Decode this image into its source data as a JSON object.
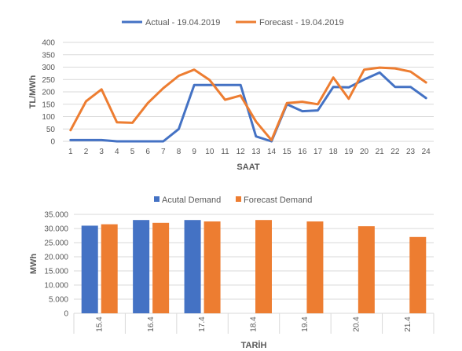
{
  "colors": {
    "actual": "#4472c4",
    "forecast": "#ed7d31",
    "grid": "#d9d9d9",
    "text": "#595959"
  },
  "chart_data": [
    {
      "type": "line",
      "xlabel": "SAAT",
      "ylabel": "TL/MWh",
      "ylim": [
        0,
        400
      ],
      "yticks": [
        "0",
        "50",
        "100",
        "150",
        "200",
        "250",
        "300",
        "350",
        "400"
      ],
      "grid": true,
      "legend": "top",
      "x": [
        "1",
        "2",
        "3",
        "4",
        "5",
        "6",
        "7",
        "8",
        "9",
        "10",
        "11",
        "12",
        "13",
        "14",
        "15",
        "16",
        "17",
        "18",
        "19",
        "20",
        "21",
        "22",
        "23",
        "24"
      ],
      "series": [
        {
          "name": "Actual - 19.04.2019",
          "values": [
            5,
            5,
            5,
            0,
            0,
            0,
            0,
            50,
            228,
            228,
            228,
            228,
            20,
            0,
            150,
            122,
            125,
            220,
            218,
            250,
            278,
            220,
            220,
            175
          ]
        },
        {
          "name": "Forecast - 19.04.2019",
          "values": [
            45,
            162,
            210,
            77,
            75,
            155,
            215,
            265,
            290,
            248,
            168,
            185,
            80,
            5,
            155,
            160,
            150,
            258,
            172,
            290,
            298,
            295,
            282,
            238
          ]
        }
      ]
    },
    {
      "type": "bar",
      "xlabel": "TARİH",
      "ylabel": "MWh",
      "ylim": [
        0,
        35000
      ],
      "yticks": [
        "0",
        "5.000",
        "10.000",
        "15.000",
        "20.000",
        "25.000",
        "30.000",
        "35.000"
      ],
      "grid": true,
      "legend": "top",
      "categories": [
        "15.4",
        "16.4",
        "17.4",
        "18.4",
        "19.4",
        "20.4",
        "21.4"
      ],
      "series": [
        {
          "name": "Acutal Demand",
          "values": [
            31000,
            33000,
            33000,
            null,
            null,
            null,
            null
          ]
        },
        {
          "name": "Forecast Demand",
          "values": [
            31500,
            32000,
            32500,
            33000,
            32500,
            30800,
            27000
          ]
        }
      ]
    }
  ]
}
